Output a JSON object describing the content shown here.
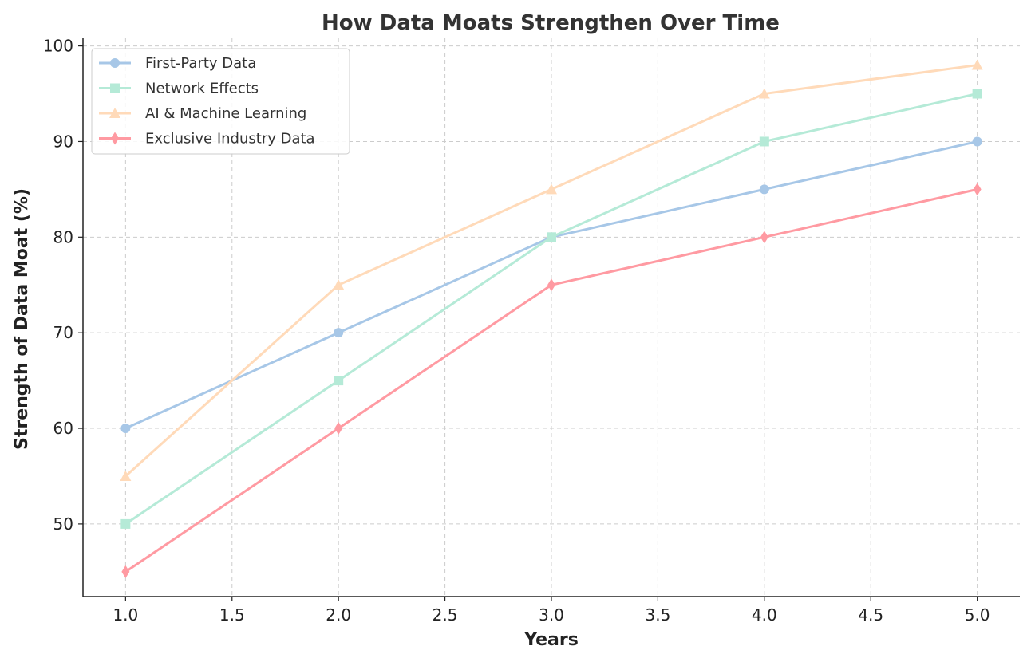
{
  "chart_data": {
    "type": "line",
    "title": "How Data Moats Strengthen Over Time",
    "xlabel": "Years",
    "ylabel": "Strength of Data Moat (%)",
    "x": [
      1,
      2,
      3,
      4,
      5
    ],
    "xlim": [
      0.8,
      5.2
    ],
    "ylim": [
      42.4,
      100.8
    ],
    "xticks": [
      "1.0",
      "1.5",
      "2.0",
      "2.5",
      "3.0",
      "3.5",
      "4.0",
      "4.5",
      "5.0"
    ],
    "yticks": [
      "50",
      "60",
      "70",
      "80",
      "90",
      "100"
    ],
    "grid": true,
    "legend_position": "top-left",
    "series": [
      {
        "name": "First-Party Data",
        "values": [
          60,
          70,
          80,
          85,
          90
        ],
        "color": "#a7c7e7",
        "marker": "circle"
      },
      {
        "name": "Network Effects",
        "values": [
          50,
          65,
          80,
          90,
          95
        ],
        "color": "#b5ead7",
        "marker": "square"
      },
      {
        "name": "AI & Machine Learning",
        "values": [
          55,
          75,
          85,
          95,
          98
        ],
        "color": "#ffdab9",
        "marker": "triangle"
      },
      {
        "name": "Exclusive Industry Data",
        "values": [
          45,
          60,
          75,
          80,
          85
        ],
        "color": "#ff9aa2",
        "marker": "diamond"
      }
    ]
  }
}
